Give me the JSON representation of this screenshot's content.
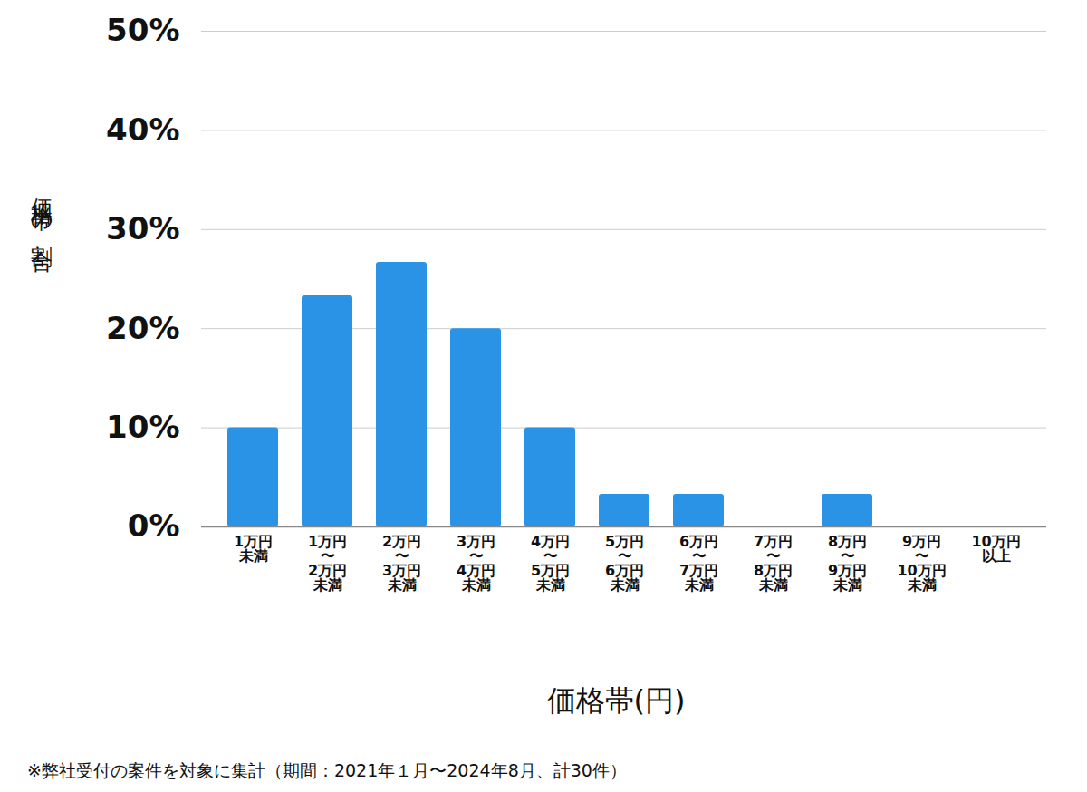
{
  "chart_data": {
    "type": "bar",
    "x_label": "価格帯(円)",
    "y_label": "価格帯の割合",
    "caption": "※弊社受付の案件を対象に集計（期間：2021年１月〜2024年8月、計30件）",
    "categories": [
      "1万円\n未満",
      "1万円\n〜\n2万円\n未満",
      "2万円\n〜\n3万円\n未満",
      "3万円\n〜\n4万円\n未満",
      "4万円\n〜\n5万円\n未満",
      "5万円\n〜\n6万円\n未満",
      "6万円\n〜\n7万円\n未満",
      "7万円\n〜\n8万円\n未満",
      "8万円\n〜\n9万円\n未満",
      "9万円\n〜\n10万円\n未満",
      "10万円\n以上"
    ],
    "values": [
      10,
      23.3,
      26.7,
      20,
      10,
      3.3,
      3.3,
      0,
      3.3,
      0,
      0
    ],
    "color": "#2a93e6",
    "ylim": [
      0,
      50
    ],
    "yticks": [
      {
        "value": 0,
        "label": "0%"
      },
      {
        "value": 10,
        "label": "10%"
      },
      {
        "value": 20,
        "label": "20%"
      },
      {
        "value": 30,
        "label": "30%"
      },
      {
        "value": 40,
        "label": "40%"
      },
      {
        "value": 50,
        "label": "50%"
      }
    ],
    "grid": true
  }
}
